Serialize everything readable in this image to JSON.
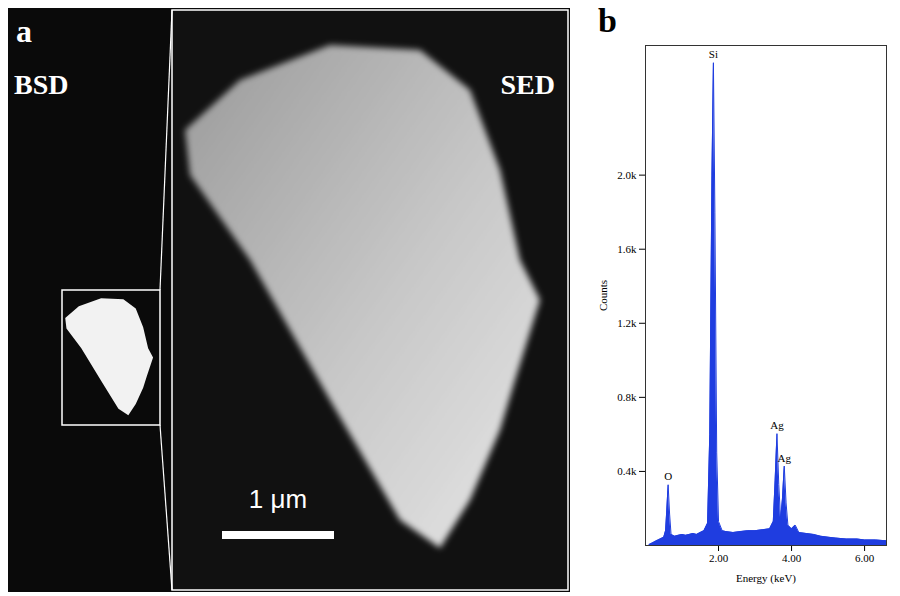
{
  "image_panel": {
    "letter": "a",
    "labels": [
      "BSD",
      "SED"
    ],
    "scale_bar": "1 μm"
  },
  "chart_data": {
    "type": "area",
    "title": "b",
    "x_label": "Energy (keV)",
    "y_label": "Counts",
    "x": [
      0.1,
      0.2,
      0.3,
      0.4,
      0.5,
      0.55,
      0.58,
      0.62,
      0.66,
      0.7,
      0.8,
      0.9,
      1.0,
      1.1,
      1.2,
      1.3,
      1.4,
      1.5,
      1.6,
      1.7,
      1.76,
      1.82,
      1.86,
      1.9,
      1.95,
      2.0,
      2.1,
      2.2,
      2.4,
      2.6,
      2.8,
      3.0,
      3.2,
      3.4,
      3.5,
      3.55,
      3.6,
      3.65,
      3.7,
      3.75,
      3.8,
      3.85,
      3.9,
      4.0,
      4.1,
      4.2,
      4.4,
      4.6,
      4.8,
      5.0,
      5.2,
      5.5,
      5.8,
      6.0,
      6.3,
      6.6
    ],
    "values": [
      5,
      15,
      25,
      35,
      45,
      80,
      180,
      328,
      170,
      60,
      50,
      55,
      60,
      55,
      60,
      65,
      60,
      70,
      80,
      120,
      600,
      2000,
      2607,
      1800,
      500,
      130,
      80,
      75,
      70,
      75,
      80,
      80,
      85,
      90,
      130,
      350,
      604,
      330,
      140,
      250,
      429,
      230,
      110,
      90,
      110,
      70,
      65,
      60,
      50,
      45,
      40,
      35,
      35,
      30,
      30,
      25
    ],
    "color": "#1f3de0",
    "xlim": [
      0,
      6.6
    ],
    "xticks": [
      {
        "value": 2,
        "label": "2.00"
      },
      {
        "value": 4,
        "label": "4.00"
      },
      {
        "value": 6,
        "label": "6.00"
      }
    ],
    "ylim": [
      0,
      2700
    ],
    "yticks": [
      {
        "value": 400,
        "label": "0.4k"
      },
      {
        "value": 800,
        "label": "0.8k"
      },
      {
        "value": 1200,
        "label": "1.2k"
      },
      {
        "value": 1600,
        "label": "1.6k"
      },
      {
        "value": 2000,
        "label": "2.0k"
      }
    ],
    "grid": false,
    "annotations": [
      {
        "text": "O",
        "x": 0.62,
        "y": 328
      },
      {
        "text": "Si",
        "x": 1.86,
        "y": 2607
      },
      {
        "text": "Ag",
        "x": 3.6,
        "y": 604
      },
      {
        "text": "Ag",
        "x": 3.8,
        "y": 429
      }
    ]
  }
}
